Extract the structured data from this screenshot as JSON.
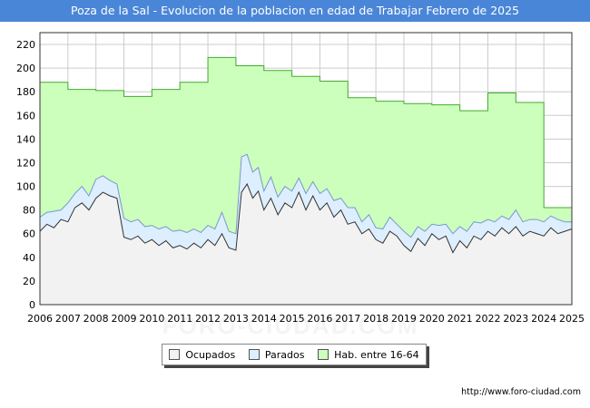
{
  "title": "Poza de la Sal - Evolucion de la poblacion en edad de Trabajar Febrero de 2025",
  "source": "http://www.foro-ciudad.com",
  "watermark": "FORO-CIUDAD.COM",
  "colors": {
    "title_bg": "#4a86d8",
    "hab_fill": "#ccffbb",
    "hab_line": "#44aa33",
    "parados_fill": "#ddeeff",
    "parados_line": "#7799cc",
    "ocupados_fill": "#f2f2f2",
    "ocupados_line": "#333333",
    "grid": "#cccccc"
  },
  "chart_data": {
    "type": "area",
    "title": "Poza de la Sal - Evolucion de la poblacion en edad de Trabajar Febrero de 2025",
    "xlabel": "",
    "ylabel": "",
    "xlim": [
      2006,
      2025
    ],
    "ylim": [
      0,
      230
    ],
    "x_ticks": [
      "2006",
      "2007",
      "2008",
      "2009",
      "2010",
      "2011",
      "2012",
      "2013",
      "2014",
      "2015",
      "2016",
      "2017",
      "2018",
      "2019",
      "2020",
      "2021",
      "2022",
      "2023",
      "2024",
      "2025"
    ],
    "y_ticks": [
      0,
      20,
      40,
      60,
      80,
      100,
      120,
      140,
      160,
      180,
      200,
      220
    ],
    "grid": true,
    "legend": [
      "Ocupados",
      "Parados",
      "Hab. entre 16-64"
    ],
    "hab_steps": [
      {
        "year": 2006,
        "value": 188
      },
      {
        "year": 2007,
        "value": 182
      },
      {
        "year": 2008,
        "value": 181
      },
      {
        "year": 2009,
        "value": 176
      },
      {
        "year": 2010,
        "value": 182
      },
      {
        "year": 2011,
        "value": 188
      },
      {
        "year": 2012,
        "value": 209
      },
      {
        "year": 2013,
        "value": 202
      },
      {
        "year": 2014,
        "value": 198
      },
      {
        "year": 2015,
        "value": 193
      },
      {
        "year": 2016,
        "value": 189
      },
      {
        "year": 2017,
        "value": 175
      },
      {
        "year": 2018,
        "value": 172
      },
      {
        "year": 2019,
        "value": 170
      },
      {
        "year": 2020,
        "value": 169
      },
      {
        "year": 2021,
        "value": 164
      },
      {
        "year": 2022,
        "value": 179
      },
      {
        "year": 2023,
        "value": 171
      },
      {
        "year": 2024,
        "value": 82
      },
      {
        "year": 2025,
        "value": 82
      }
    ],
    "series": [
      {
        "name": "Ocupados",
        "x": [
          2006.0,
          2006.25,
          2006.5,
          2006.75,
          2007.0,
          2007.25,
          2007.5,
          2007.75,
          2008.0,
          2008.25,
          2008.5,
          2008.75,
          2009.0,
          2009.25,
          2009.5,
          2009.75,
          2010.0,
          2010.25,
          2010.5,
          2010.75,
          2011.0,
          2011.25,
          2011.5,
          2011.75,
          2012.0,
          2012.25,
          2012.5,
          2012.75,
          2013.0,
          2013.2,
          2013.4,
          2013.6,
          2013.8,
          2014.0,
          2014.25,
          2014.5,
          2014.75,
          2015.0,
          2015.25,
          2015.5,
          2015.75,
          2016.0,
          2016.25,
          2016.5,
          2016.75,
          2017.0,
          2017.25,
          2017.5,
          2017.75,
          2018.0,
          2018.25,
          2018.5,
          2018.75,
          2019.0,
          2019.25,
          2019.5,
          2019.75,
          2020.0,
          2020.25,
          2020.5,
          2020.75,
          2021.0,
          2021.25,
          2021.5,
          2021.75,
          2022.0,
          2022.25,
          2022.5,
          2022.75,
          2023.0,
          2023.25,
          2023.5,
          2023.75,
          2024.0,
          2024.25,
          2024.5,
          2024.75,
          2025.0
        ],
        "values": [
          62,
          68,
          65,
          72,
          70,
          82,
          86,
          80,
          90,
          95,
          92,
          90,
          57,
          55,
          58,
          52,
          55,
          50,
          54,
          48,
          50,
          47,
          52,
          48,
          55,
          50,
          60,
          48,
          46,
          95,
          102,
          90,
          96,
          80,
          90,
          76,
          86,
          82,
          95,
          80,
          92,
          80,
          86,
          74,
          80,
          68,
          70,
          60,
          64,
          55,
          52,
          62,
          58,
          50,
          45,
          56,
          50,
          60,
          55,
          58,
          44,
          54,
          48,
          58,
          55,
          62,
          58,
          65,
          60,
          66,
          58,
          62,
          60,
          58,
          65,
          60,
          62,
          64
        ]
      },
      {
        "name": "Parados",
        "x": [
          2006.0,
          2006.25,
          2006.5,
          2006.75,
          2007.0,
          2007.25,
          2007.5,
          2007.75,
          2008.0,
          2008.25,
          2008.5,
          2008.75,
          2009.0,
          2009.25,
          2009.5,
          2009.75,
          2010.0,
          2010.25,
          2010.5,
          2010.75,
          2011.0,
          2011.25,
          2011.5,
          2011.75,
          2012.0,
          2012.25,
          2012.5,
          2012.75,
          2013.0,
          2013.2,
          2013.4,
          2013.6,
          2013.8,
          2014.0,
          2014.25,
          2014.5,
          2014.75,
          2015.0,
          2015.25,
          2015.5,
          2015.75,
          2016.0,
          2016.25,
          2016.5,
          2016.75,
          2017.0,
          2017.25,
          2017.5,
          2017.75,
          2018.0,
          2018.25,
          2018.5,
          2018.75,
          2019.0,
          2019.25,
          2019.5,
          2019.75,
          2020.0,
          2020.25,
          2020.5,
          2020.75,
          2021.0,
          2021.25,
          2021.5,
          2021.75,
          2022.0,
          2022.25,
          2022.5,
          2022.75,
          2023.0,
          2023.25,
          2023.5,
          2023.75,
          2024.0,
          2024.25,
          2024.5,
          2024.75,
          2025.0
        ],
        "values": [
          12,
          10,
          14,
          8,
          16,
          12,
          14,
          12,
          16,
          14,
          13,
          12,
          16,
          15,
          14,
          14,
          12,
          14,
          12,
          14,
          13,
          14,
          12,
          13,
          12,
          14,
          18,
          14,
          14,
          30,
          25,
          22,
          20,
          16,
          18,
          15,
          14,
          14,
          12,
          14,
          12,
          14,
          12,
          14,
          10,
          14,
          12,
          10,
          12,
          10,
          12,
          12,
          10,
          12,
          12,
          10,
          12,
          8,
          12,
          10,
          16,
          12,
          14,
          12,
          14,
          10,
          12,
          10,
          12,
          14,
          12,
          10,
          12,
          12,
          10,
          12,
          8,
          6
        ]
      }
    ]
  }
}
